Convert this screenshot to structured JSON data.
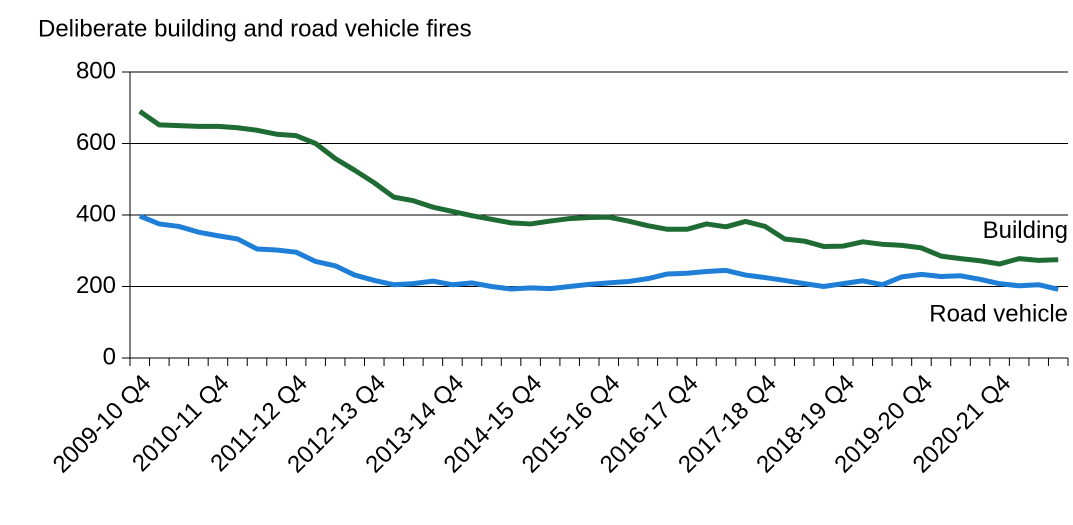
{
  "chart_data": {
    "type": "line",
    "title": "Deliberate building and road vehicle fires",
    "categories": [
      "2009-10 Q4",
      null,
      null,
      null,
      "2010-11 Q4",
      null,
      null,
      null,
      "2011-12 Q4",
      null,
      null,
      null,
      "2012-13 Q4",
      null,
      null,
      null,
      "2013-14 Q4",
      null,
      null,
      null,
      "2014-15 Q4",
      null,
      null,
      null,
      "2015-16 Q4",
      null,
      null,
      null,
      "2016-17 Q4",
      null,
      null,
      null,
      "2017-18 Q4",
      null,
      null,
      null,
      "2018-19 Q4",
      null,
      null,
      null,
      "2019-20 Q4",
      null,
      null,
      null,
      "2020-21 Q4",
      null,
      null,
      null
    ],
    "series": [
      {
        "name": "Building",
        "color": "#1e6b34",
        "values": [
          690,
          652,
          650,
          648,
          648,
          644,
          637,
          626,
          622,
          600,
          558,
          525,
          490,
          450,
          440,
          422,
          410,
          398,
          388,
          378,
          375,
          383,
          390,
          393,
          394,
          383,
          370,
          360,
          360,
          375,
          367,
          382,
          368,
          333,
          327,
          312,
          313,
          325,
          318,
          315,
          308,
          285,
          278,
          272,
          263,
          278,
          273,
          275
        ]
      },
      {
        "name": "Road vehicle",
        "color": "#1f7fd6",
        "values": [
          397,
          375,
          368,
          352,
          342,
          333,
          305,
          302,
          296,
          270,
          258,
          232,
          217,
          205,
          208,
          215,
          205,
          210,
          200,
          193,
          196,
          194,
          200,
          206,
          210,
          214,
          222,
          235,
          237,
          242,
          245,
          232,
          225,
          217,
          208,
          200,
          208,
          216,
          205,
          227,
          234,
          228,
          230,
          220,
          208,
          202,
          205,
          192
        ]
      }
    ],
    "ylim": [
      0,
      800
    ],
    "yticks": [
      0,
      200,
      400,
      600,
      800
    ],
    "grid": true
  }
}
